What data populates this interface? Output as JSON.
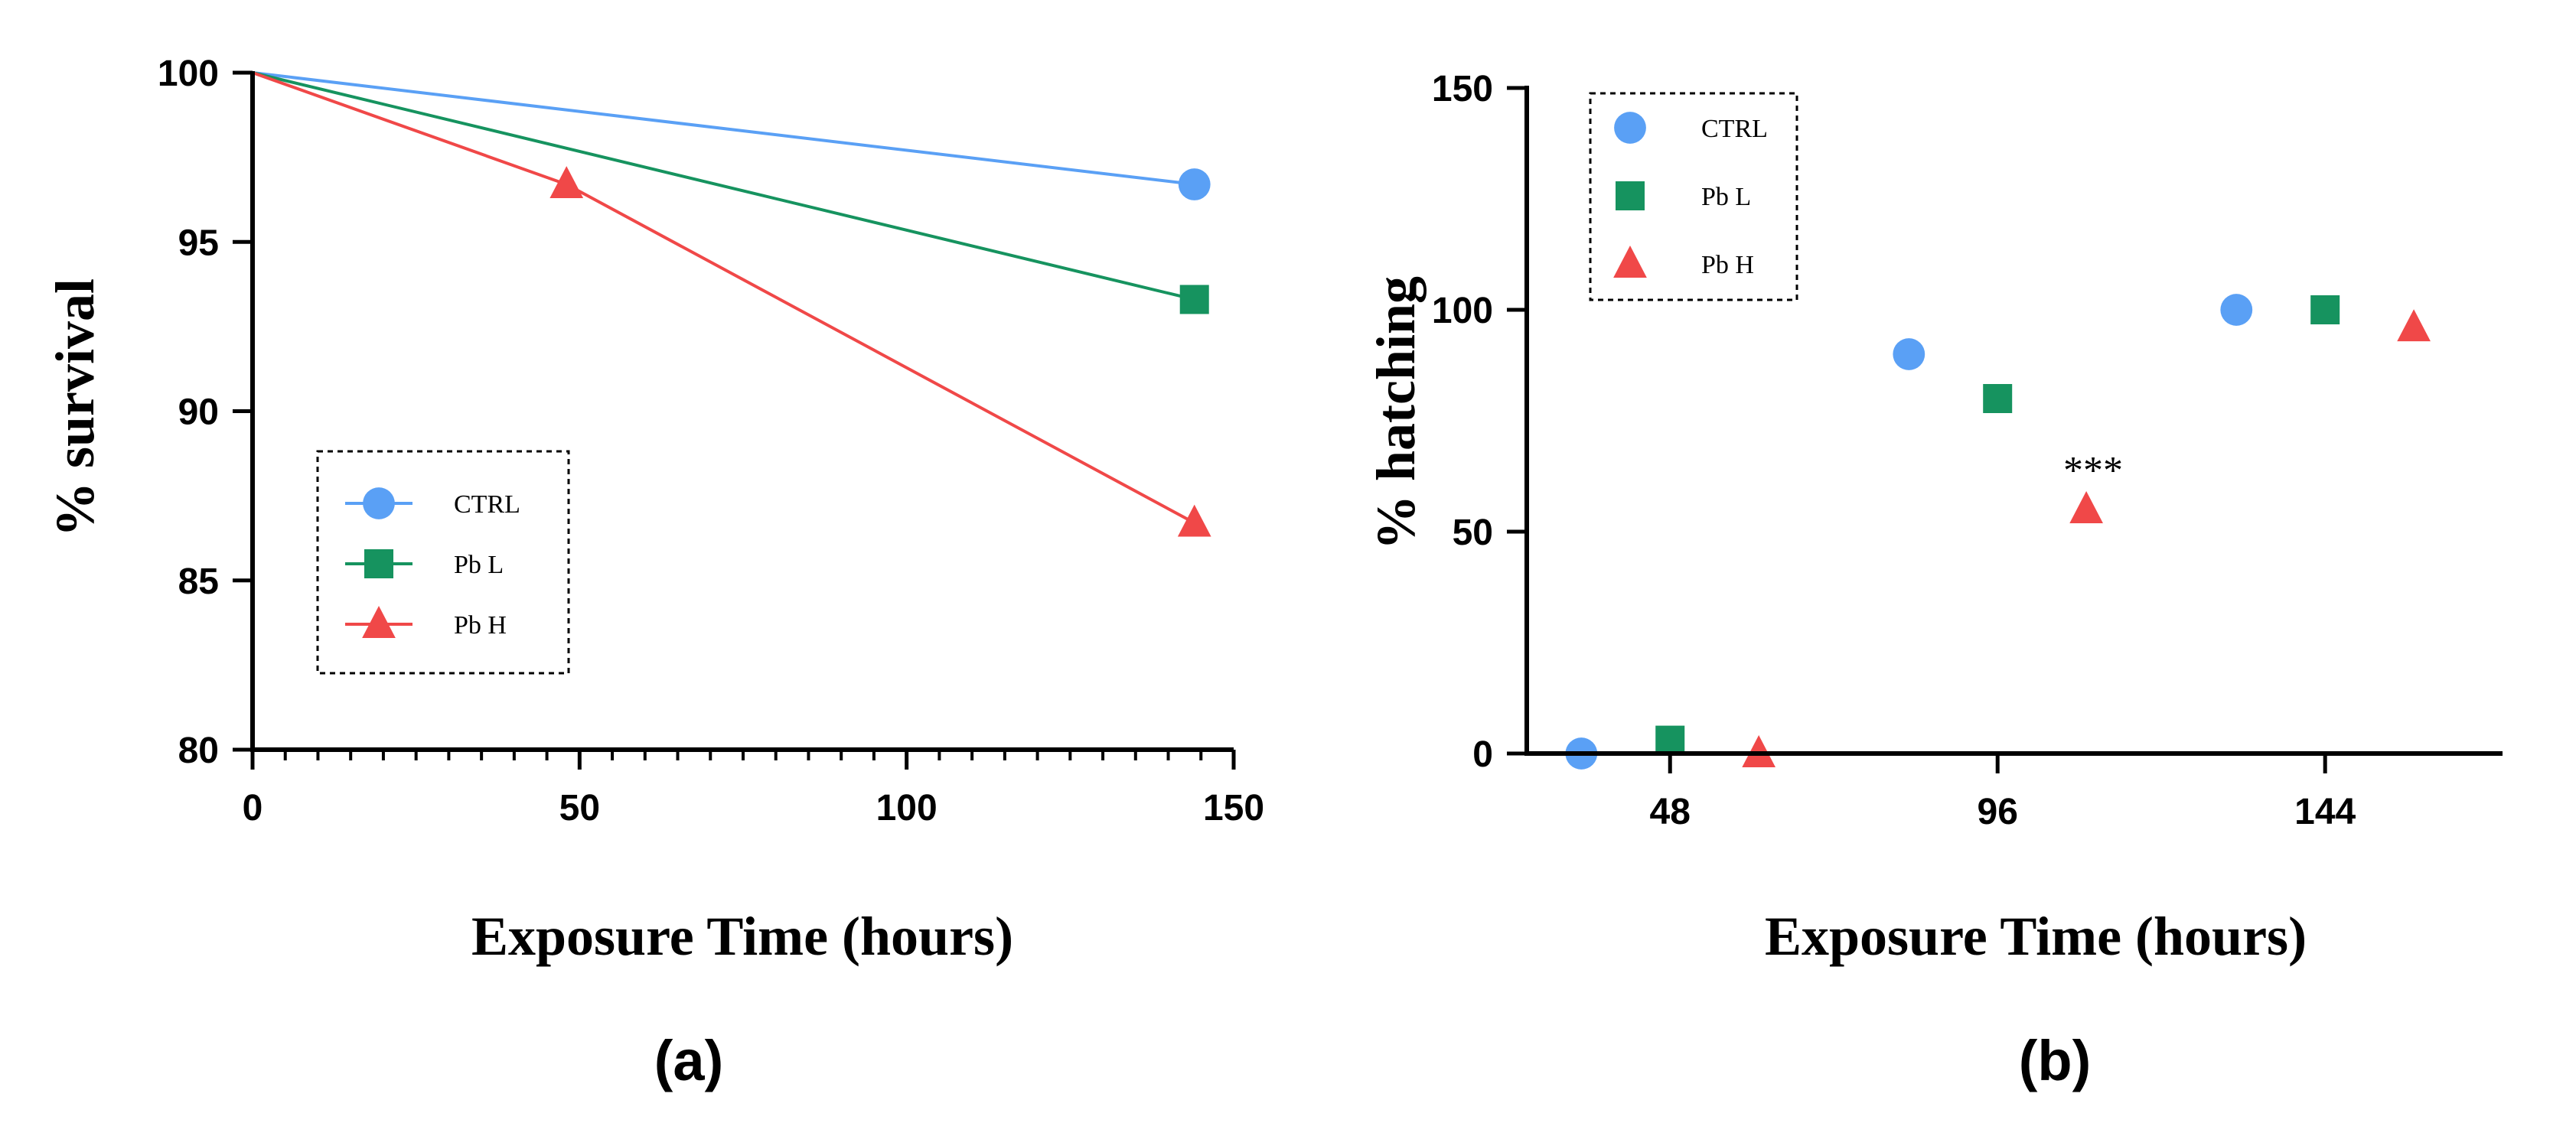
{
  "chart_data": [
    {
      "panel": "(a)",
      "type": "line",
      "xlabel": "Exposure Time (hours)",
      "ylabel": "% survival",
      "xlim": [
        0,
        150
      ],
      "ylim": [
        80,
        100
      ],
      "xticks": [
        "0",
        "50",
        "100",
        "150"
      ],
      "yticks": [
        "80",
        "85",
        "90",
        "95",
        "100"
      ],
      "legend_position": "lower-left",
      "series": [
        {
          "name": "CTRL",
          "color": "#5aa0f5",
          "marker": "circle",
          "markers_at": [
            144
          ],
          "points": [
            {
              "x": 0,
              "y": 100
            },
            {
              "x": 144,
              "y": 96.7
            }
          ]
        },
        {
          "name": "Pb L",
          "color": "#16935f",
          "marker": "square",
          "markers_at": [
            144
          ],
          "points": [
            {
              "x": 0,
              "y": 100
            },
            {
              "x": 144,
              "y": 93.3
            }
          ]
        },
        {
          "name": "Pb H",
          "color": "#f04848",
          "marker": "triangle",
          "markers_at": [
            48,
            144
          ],
          "points": [
            {
              "x": 0,
              "y": 100
            },
            {
              "x": 48,
              "y": 96.7
            },
            {
              "x": 144,
              "y": 86.7
            }
          ]
        }
      ]
    },
    {
      "panel": "(b)",
      "type": "scatter",
      "xlabel": "Exposure Time (hours)",
      "ylabel": "% hatching",
      "xlim": [
        27,
        170
      ],
      "ylim": [
        0,
        150
      ],
      "xticks": [
        "48",
        "96",
        "144"
      ],
      "yticks": [
        "0",
        "50",
        "100",
        "150"
      ],
      "legend_position": "top-left",
      "annotation": {
        "text": "***",
        "x": 110,
        "y": 66
      },
      "series": [
        {
          "name": "CTRL",
          "color": "#5aa0f5",
          "marker": "circle",
          "points": [
            {
              "x": 35,
              "y": 0
            },
            {
              "x": 83,
              "y": 90
            },
            {
              "x": 131,
              "y": 100
            }
          ]
        },
        {
          "name": "Pb L",
          "color": "#16935f",
          "marker": "square",
          "points": [
            {
              "x": 48,
              "y": 3
            },
            {
              "x": 96,
              "y": 80
            },
            {
              "x": 144,
              "y": 100
            }
          ]
        },
        {
          "name": "Pb H",
          "color": "#f04848",
          "marker": "triangle",
          "points": [
            {
              "x": 61,
              "y": 0
            },
            {
              "x": 109,
              "y": 55
            },
            {
              "x": 157,
              "y": 96
            }
          ]
        }
      ]
    }
  ]
}
